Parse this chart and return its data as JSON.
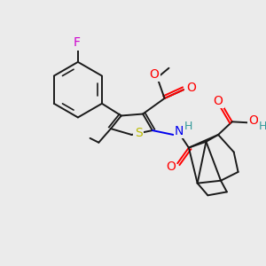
{
  "bg_color": "#ebebeb",
  "bond_color": "#1a1a1a",
  "atom_colors": {
    "F": "#cc00cc",
    "O": "#ff0000",
    "N": "#0000ee",
    "S": "#bbbb00",
    "H": "#339999",
    "C": "#1a1a1a"
  },
  "figsize": [
    3.0,
    3.0
  ],
  "dpi": 100
}
